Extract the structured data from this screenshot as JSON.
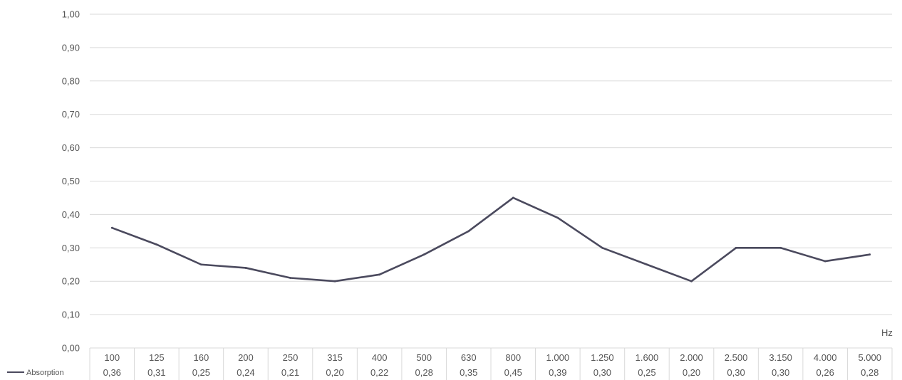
{
  "chart_data": {
    "type": "line",
    "x_unit": "Hz",
    "ylim": [
      0,
      1
    ],
    "yticks": [
      "0,00",
      "0,10",
      "0,20",
      "0,30",
      "0,40",
      "0,50",
      "0,60",
      "0,70",
      "0,80",
      "0,90",
      "1,00"
    ],
    "grid": true,
    "legend_position": "bottom-left",
    "categories": [
      "100",
      "125",
      "160",
      "200",
      "250",
      "315",
      "400",
      "500",
      "630",
      "800",
      "1.000",
      "1.250",
      "1.600",
      "2.000",
      "2.500",
      "3.150",
      "4.000",
      "5.000"
    ],
    "series": [
      {
        "name": "Absorption",
        "color": "#4b4a5e",
        "values": [
          0.36,
          0.31,
          0.25,
          0.24,
          0.21,
          0.2,
          0.22,
          0.28,
          0.35,
          0.45,
          0.39,
          0.3,
          0.25,
          0.2,
          0.3,
          0.3,
          0.26,
          0.28
        ],
        "value_labels": [
          "0,36",
          "0,31",
          "0,25",
          "0,24",
          "0,21",
          "0,20",
          "0,22",
          "0,28",
          "0,35",
          "0,45",
          "0,39",
          "0,30",
          "0,25",
          "0,20",
          "0,30",
          "0,30",
          "0,26",
          "0,28"
        ]
      }
    ],
    "colors": {
      "grid": "#d9d9d9",
      "line": "#4b4a5e",
      "text": "#555555"
    }
  }
}
